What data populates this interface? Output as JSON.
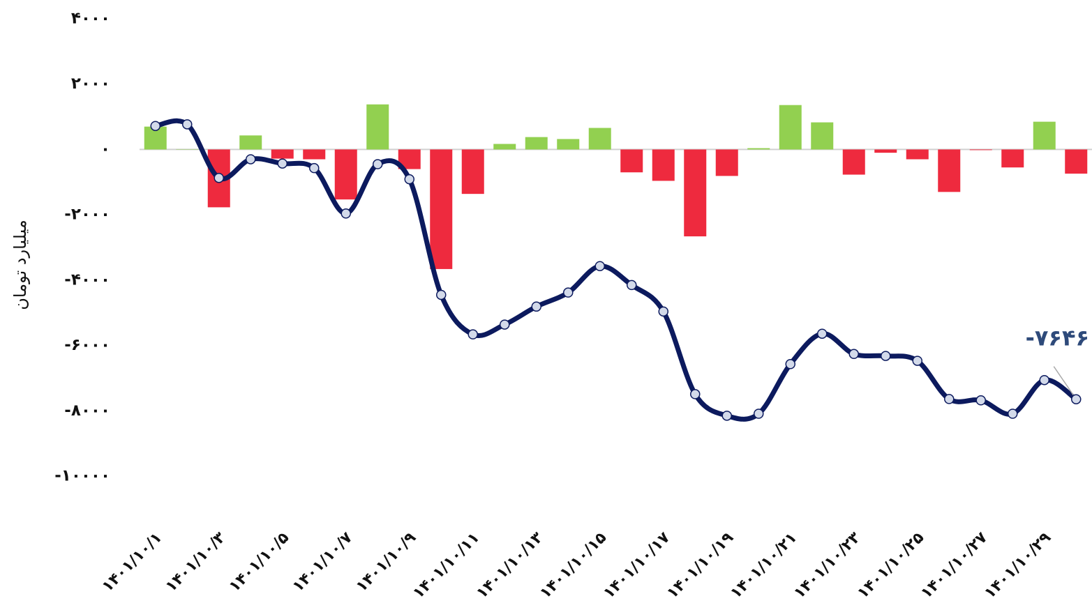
{
  "chart_data": {
    "type": "bar-line",
    "y_label": "میلیارد تومان",
    "annotation": "-۷۶۴۶",
    "categories": [
      "۱۴۰۱/۱۰/۱",
      null,
      "۱۴۰۱/۱۰/۳",
      null,
      "۱۴۰۱/۱۰/۵",
      null,
      "۱۴۰۱/۱۰/۷",
      null,
      "۱۴۰۱/۱۰/۹",
      null,
      "۱۴۰۱/۱۰/۱۱",
      null,
      "۱۴۰۱/۱۰/۱۳",
      null,
      "۱۴۰۱/۱۰/۱۵",
      null,
      "۱۴۰۱/۱۰/۱۷",
      null,
      "۱۴۰۱/۱۰/۱۹",
      null,
      "۱۴۰۱/۱۰/۲۱",
      null,
      "۱۴۰۱/۱۰/۲۳",
      null,
      "۱۴۰۱/۱۰/۲۵",
      null,
      "۱۴۰۱/۱۰/۲۷",
      null,
      "۱۴۰۱/۱۰/۲۹",
      null
    ],
    "series": [
      {
        "type": "bar",
        "color": "#92d050",
        "negative_color": "#ee2a3e",
        "values": [
          700,
          10,
          -1770,
          430,
          -280,
          -300,
          -1530,
          1380,
          -600,
          -3660,
          -1360,
          170,
          380,
          320,
          660,
          -700,
          -960,
          -2660,
          -810,
          40,
          1360,
          830,
          -770,
          -100,
          -300,
          -1300,
          -20,
          -550,
          850,
          -740
        ]
      },
      {
        "type": "line",
        "color": "#0c1a5e",
        "marker_color": "#d3daea",
        "values": [
          720,
          770,
          -870,
          -300,
          -430,
          -570,
          -1960,
          -450,
          -910,
          -4450,
          -5660,
          -5360,
          -4810,
          -4380,
          -3570,
          -4150,
          -4960,
          -7490,
          -8150,
          -8090,
          -6570,
          -5640,
          -6260,
          -6320,
          -6470,
          -7640,
          -7680,
          -8090,
          -7060,
          -7646
        ]
      }
    ],
    "ylim": [
      -10000,
      4000
    ],
    "yticks": [
      {
        "value": 4000,
        "label": "۴۰۰۰"
      },
      {
        "value": 2000,
        "label": "۲۰۰۰"
      },
      {
        "value": 0,
        "label": "۰"
      },
      {
        "value": -2000,
        "label": "-۲۰۰۰"
      },
      {
        "value": -4000,
        "label": "-۴۰۰۰"
      },
      {
        "value": -6000,
        "label": "-۶۰۰۰"
      },
      {
        "value": -8000,
        "label": "-۸۰۰۰"
      },
      {
        "value": -10000,
        "label": "-۱۰۰۰۰"
      }
    ]
  }
}
